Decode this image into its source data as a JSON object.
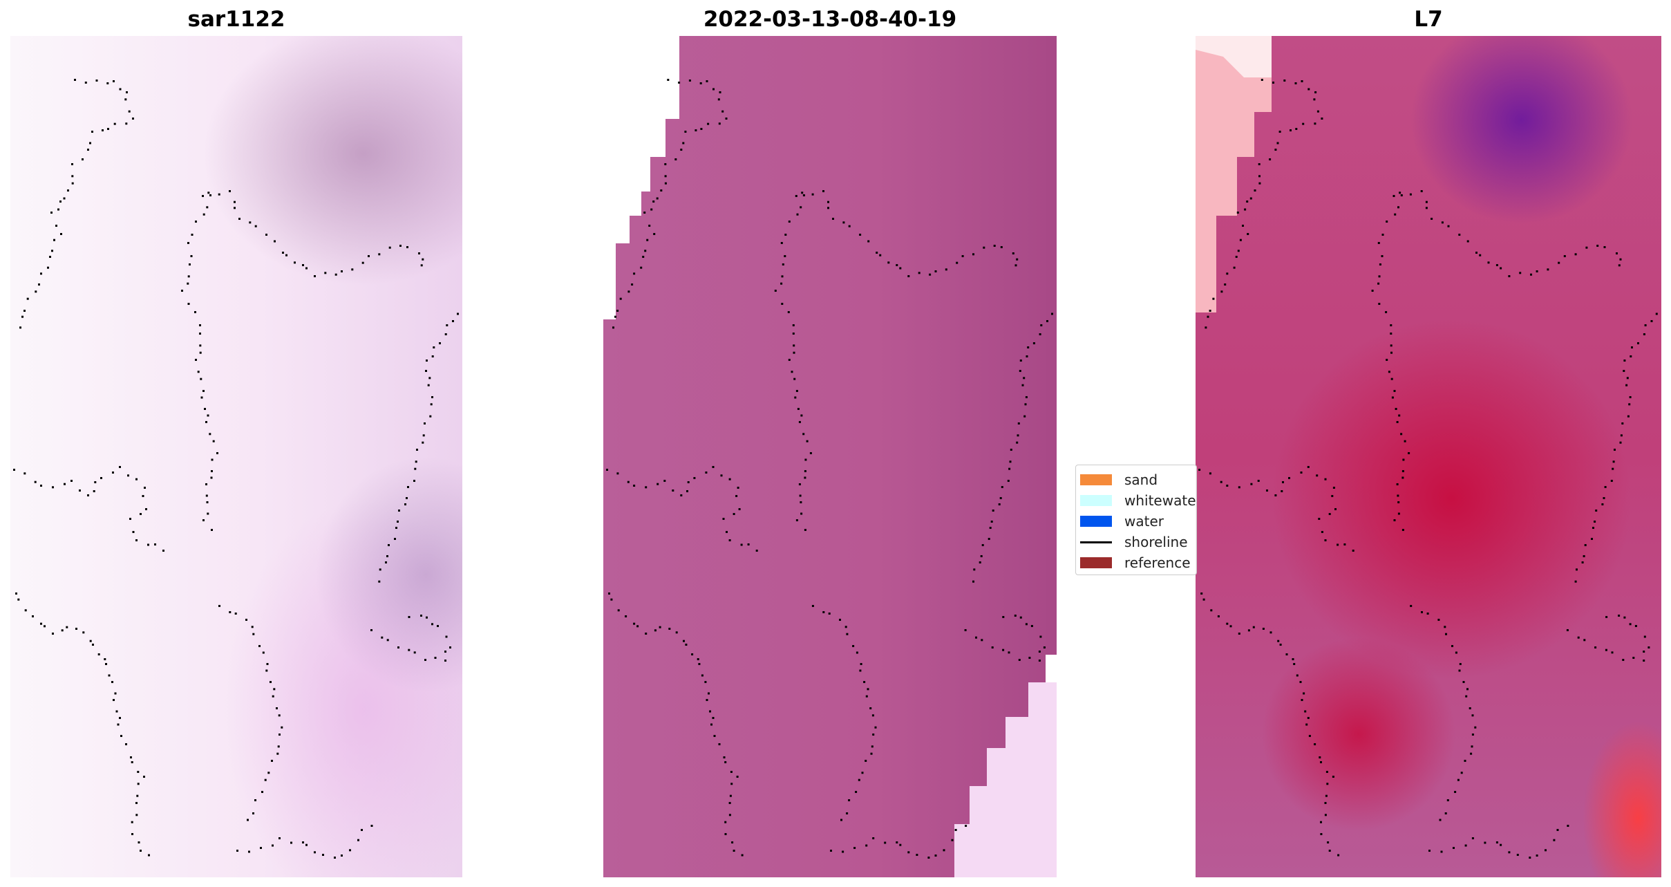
{
  "panels": [
    {
      "title": "sar1122"
    },
    {
      "title": "2022-03-13-08-40-19"
    },
    {
      "title": "L7"
    }
  ],
  "legend": {
    "items": [
      {
        "label": "sand",
        "color": "#f58a3a"
      },
      {
        "label": "whitewater",
        "color": "#ccffff"
      },
      {
        "label": "water",
        "color": "#0055ee"
      },
      {
        "label": "shoreline",
        "color": "#000000"
      },
      {
        "label": "reference",
        "color": "#9b2b2b"
      }
    ]
  },
  "colors": {
    "panel2_fill": "#b85a96",
    "shoreline_dots": "#000000"
  }
}
